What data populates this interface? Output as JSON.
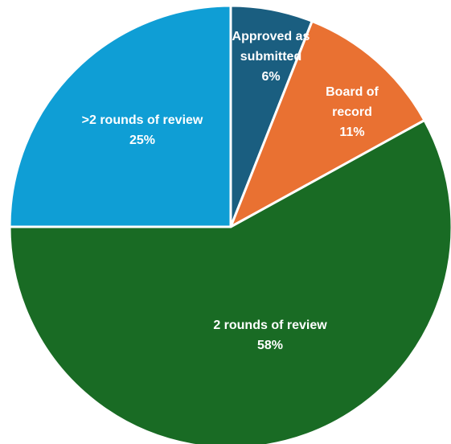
{
  "chart_data": {
    "type": "pie",
    "categories": [
      "Approved as submitted",
      "Board of record",
      "2 rounds of review",
      ">2 rounds of review"
    ],
    "values": [
      6,
      11,
      58,
      25
    ],
    "value_labels": [
      "6%",
      "11%",
      "58%",
      "25%"
    ],
    "colors": [
      "#1a5e80",
      "#e97132",
      "#196b24",
      "#0f9ed5"
    ]
  }
}
